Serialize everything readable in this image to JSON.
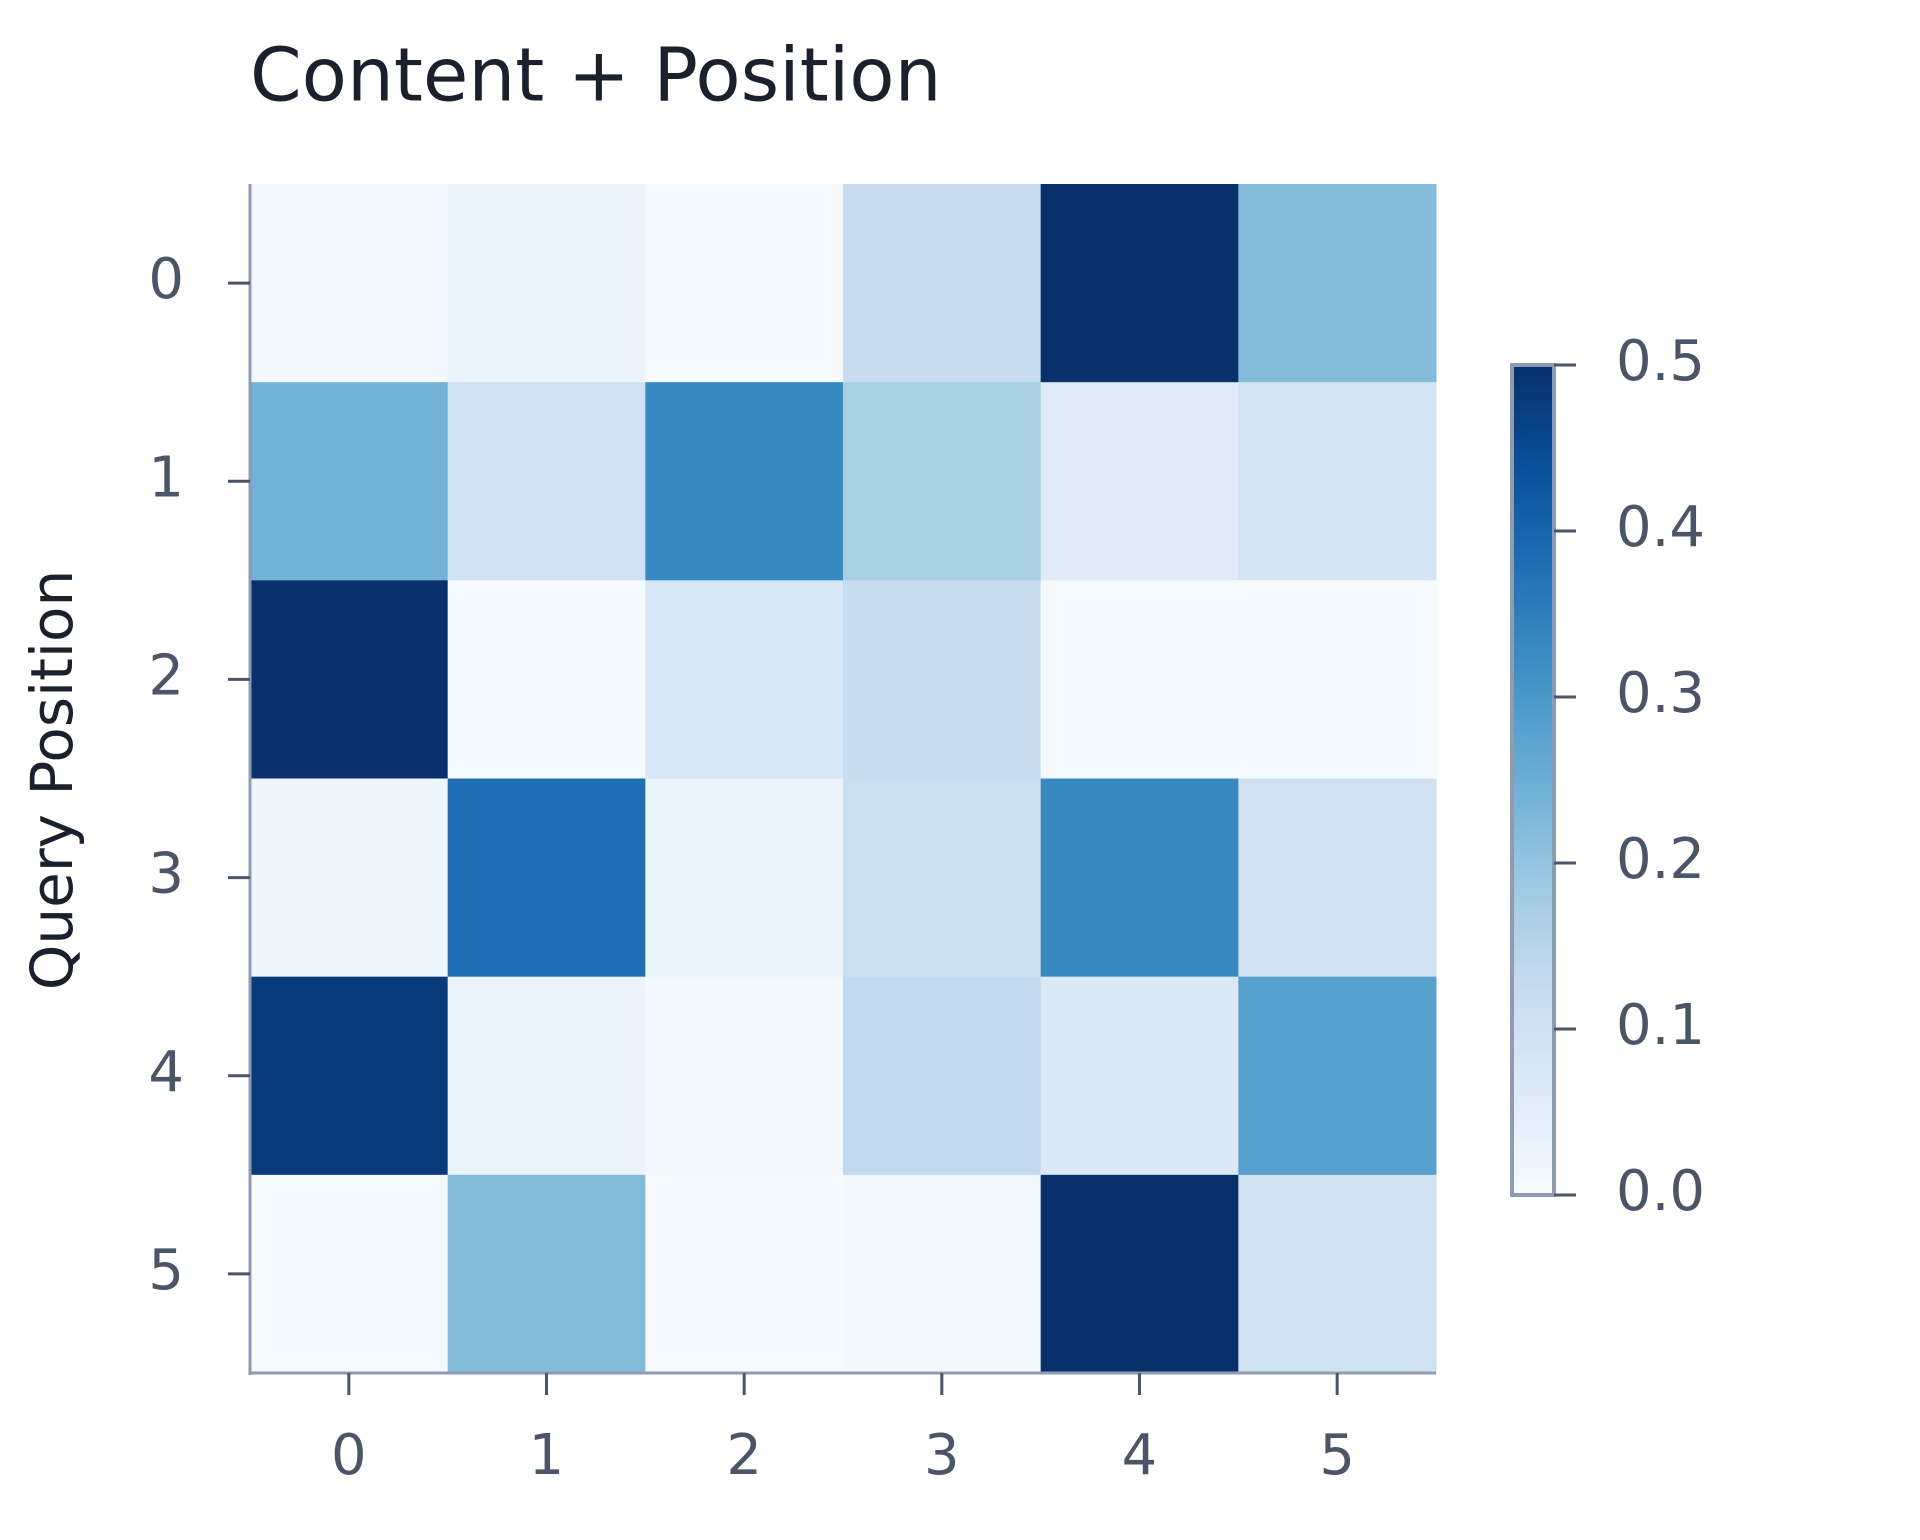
{
  "chart_data": {
    "type": "heatmap",
    "title": "Content + Position",
    "ylabel": "Query Position",
    "x": [
      0,
      1,
      2,
      3,
      4,
      5
    ],
    "y": [
      0,
      1,
      2,
      3,
      4,
      5
    ],
    "values": [
      [
        0.01,
        0.03,
        0.005,
        0.12,
        0.5,
        0.22
      ],
      [
        0.24,
        0.1,
        0.33,
        0.17,
        0.06,
        0.09
      ],
      [
        0.5,
        0.005,
        0.08,
        0.12,
        0.005,
        0.005
      ],
      [
        0.02,
        0.38,
        0.03,
        0.11,
        0.33,
        0.1
      ],
      [
        0.48,
        0.03,
        0.01,
        0.13,
        0.07,
        0.28
      ],
      [
        0.005,
        0.22,
        0.005,
        0.01,
        0.5,
        0.1
      ]
    ],
    "colormap": "Blues",
    "zlim": [
      0,
      0.5
    ],
    "zticks": [
      {
        "value": 0,
        "label": "0.0"
      },
      0.1,
      0.2,
      0.3,
      0.4,
      0.5
    ]
  }
}
